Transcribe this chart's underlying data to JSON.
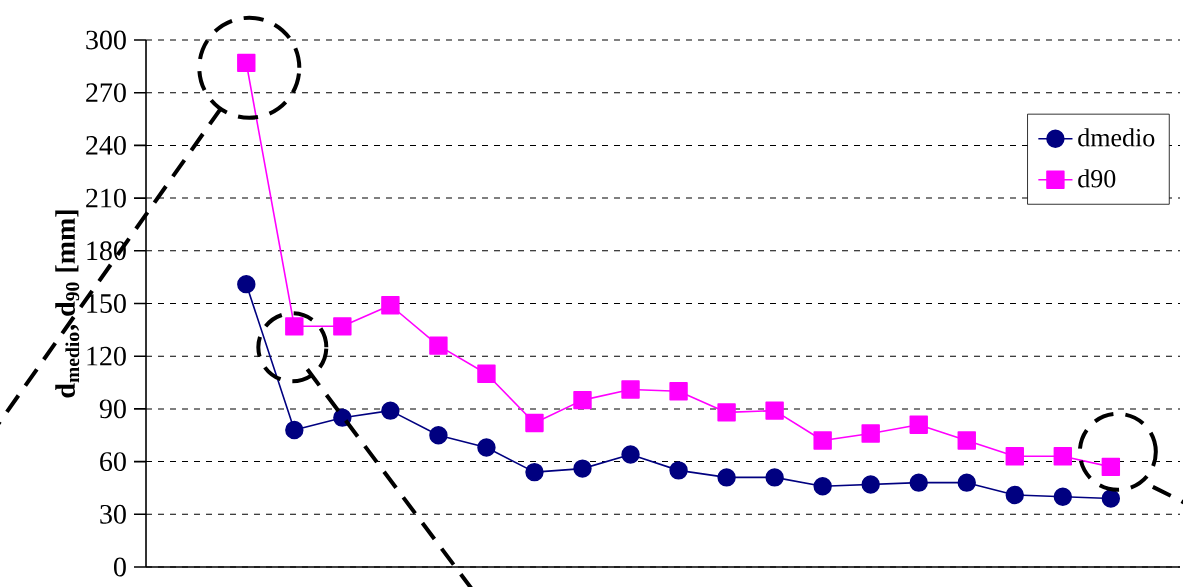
{
  "chart_data": {
    "type": "line",
    "ylabel": "d$_{medio}$, d$_{90}$ [mm]",
    "categories": [
      null,
      null,
      null,
      null,
      null,
      null,
      null,
      null,
      null,
      null,
      null,
      null,
      null,
      null,
      null,
      null,
      null,
      null,
      null
    ],
    "series": [
      {
        "name": "dmedio",
        "color": "#000080",
        "marker": "circle",
        "values": [
          161,
          78,
          85,
          89,
          75,
          68,
          54,
          56,
          64,
          55,
          51,
          51,
          46,
          47,
          48,
          48,
          41,
          40,
          39
        ]
      },
      {
        "name": "d90",
        "color": "#ff00ff",
        "marker": "square",
        "values": [
          287,
          137,
          137,
          149,
          126,
          110,
          82,
          95,
          101,
          100,
          88,
          89,
          72,
          76,
          81,
          72,
          63,
          63,
          57
        ]
      }
    ],
    "ylim": [
      0,
      300
    ],
    "yticks": [
      0,
      30,
      60,
      90,
      120,
      150,
      180,
      210,
      240,
      270,
      300
    ],
    "grid": "y",
    "legend": "top right"
  }
}
